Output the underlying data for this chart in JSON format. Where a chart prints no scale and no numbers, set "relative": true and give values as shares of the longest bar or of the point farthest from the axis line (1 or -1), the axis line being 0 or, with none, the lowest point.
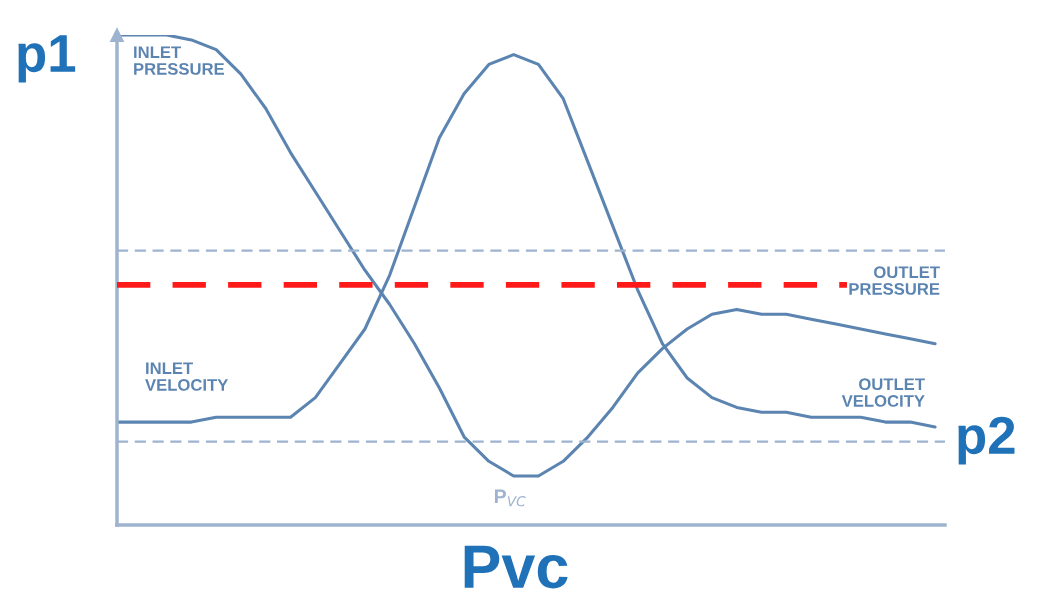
{
  "chart_data": {
    "type": "line",
    "relative": true,
    "line_style": "solid",
    "xlabel": "Pvc",
    "categories": [
      null,
      null,
      null,
      null,
      null,
      null,
      null,
      null,
      null,
      null,
      null,
      null,
      null,
      null,
      null,
      null,
      null,
      null,
      null,
      null,
      null,
      null,
      null,
      null,
      null,
      null,
      null,
      null,
      null,
      null,
      null,
      null,
      null,
      null
    ],
    "series": [
      {
        "color": "#5b84b1",
        "values": [
          1.0,
          1.0,
          1.0,
          0.99,
          0.97,
          0.92,
          0.85,
          0.76,
          0.68,
          0.6,
          0.52,
          0.45,
          0.37,
          0.28,
          0.18,
          0.13,
          0.1,
          0.1,
          0.13,
          0.18,
          0.24,
          0.31,
          0.36,
          0.4,
          0.43,
          0.44,
          0.43,
          0.43,
          0.42,
          0.41,
          0.4,
          0.39,
          0.38,
          0.37
        ]
      },
      {
        "color": "#5b84b1",
        "values": [
          0.21,
          0.21,
          0.21,
          0.21,
          0.22,
          0.22,
          0.22,
          0.22,
          0.26,
          0.33,
          0.4,
          0.51,
          0.65,
          0.79,
          0.88,
          0.94,
          0.96,
          0.94,
          0.87,
          0.74,
          0.61,
          0.48,
          0.37,
          0.3,
          0.26,
          0.24,
          0.23,
          0.23,
          0.22,
          0.22,
          0.22,
          0.21,
          0.21,
          0.2
        ]
      }
    ],
    "ref_lines": [
      {
        "axis": "y",
        "value": 0.56,
        "color": "#9db3cf",
        "line_style": "dashed"
      },
      {
        "axis": "y",
        "value": 0.49,
        "color": "#ff1a1a",
        "line_style": "dashed"
      },
      {
        "axis": "y",
        "value": 0.17,
        "color": "#9db3cf",
        "line_style": "dashed"
      }
    ],
    "annotations": [
      "p1",
      "INLET\nPRESSURE",
      "OUTLET\nPRESSURE",
      "INLET\nVELOCITY",
      "OUTLET\nVELOCITY",
      "p2",
      "P$_{VC}$"
    ]
  }
}
